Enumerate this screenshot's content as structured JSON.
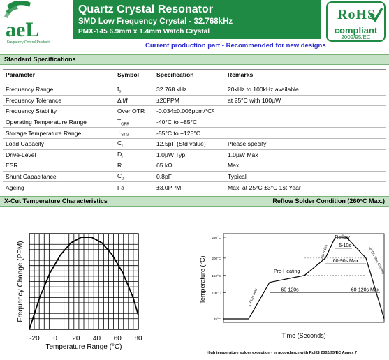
{
  "header": {
    "logo_text": "aeL",
    "logo_tagline": "Frequency Control Products",
    "title": "Quartz Crystal Resonator",
    "subtitle": "SMD Low Frequency Crystal - 32.768kHz",
    "model": "PMX-145 6.9mm x 1.4mm  Watch Crystal",
    "production_note": "Current production part - Recommended for new designs"
  },
  "rohs": {
    "mark": "RoHS",
    "compliant": "compliant",
    "directive": "2002/95/EC"
  },
  "colors": {
    "brand_green": "#1f8a43",
    "section_green": "#c6e2c6",
    "note_blue": "#2a2ad0"
  },
  "specs": {
    "section_title": "Standard Specifications",
    "headers": [
      "Parameter",
      "Symbol",
      "Specification",
      "Remarks"
    ],
    "rows": [
      {
        "parameter": "Frequency Range",
        "symbol": "f",
        "symbol_sub": "o",
        "spec": "32.768 kHz",
        "remarks": "20kHz to 100kHz available"
      },
      {
        "parameter": "Frequency Tolerance",
        "symbol": "Δ f/f",
        "symbol_sub": "",
        "spec": "±20PPM",
        "remarks": "at 25°C with 100µW"
      },
      {
        "parameter": "Frequency Stability",
        "symbol": "Over OTR",
        "symbol_sub": "",
        "spec": "-0.034±0.006ppm/°C²",
        "remarks": ""
      },
      {
        "parameter": "Operating Temperature Range",
        "symbol": "T",
        "symbol_sub": "OPR",
        "spec": "-40°C to +85°C",
        "remarks": ""
      },
      {
        "parameter": "Storage Temperature Range",
        "symbol": "T",
        "symbol_sub": "STG",
        "spec": "-55°C to +125°C",
        "remarks": ""
      },
      {
        "parameter": "Load Capacity",
        "symbol": "C",
        "symbol_sub": "L",
        "spec": "12.5pF (Std value)",
        "remarks": "Please specify"
      },
      {
        "parameter": "Drive-Level",
        "symbol": "D",
        "symbol_sub": "L",
        "spec": "1.0µW Typ.",
        "remarks": "1.0µW Max"
      },
      {
        "parameter": "ESR",
        "symbol": "R",
        "symbol_sub": "",
        "spec": "65 kΩ",
        "remarks": "Max."
      },
      {
        "parameter": "Shunt Capacitance",
        "symbol": "C",
        "symbol_sub": "0",
        "spec": "0.8pF",
        "remarks": "Typical"
      },
      {
        "parameter": "Ageing",
        "symbol": "Fa",
        "symbol_sub": "",
        "spec": "±3.0PPM",
        "remarks": "Max. at 25°C ±3°C 1st Year"
      }
    ]
  },
  "charts_section": {
    "left_title": "X-Cut Temperature Characteristics",
    "right_title": "Reflow Solder Condition (260°C Max.)"
  },
  "chart_data": [
    {
      "type": "line",
      "title": "",
      "xlabel": "Temperature Range (°C)",
      "ylabel": "Frequency Change (PPM)",
      "x_ticks": [
        -20,
        0,
        20,
        40,
        60,
        80
      ],
      "xlim": [
        -25,
        80
      ],
      "grid": true,
      "series": [
        {
          "x": [
            -25,
            -15,
            -5,
            5,
            15,
            25,
            35,
            45,
            55,
            65,
            75,
            80
          ],
          "y": [
            -1.0,
            -0.55,
            -0.2,
            0.05,
            0.22,
            0.3,
            0.3,
            0.22,
            0.05,
            -0.2,
            -0.55,
            -0.8
          ]
        }
      ]
    },
    {
      "type": "line",
      "title": "",
      "xlabel": "Time (Seconds)",
      "ylabel": "Temperature (°C)",
      "y_ticks": [
        "25°C",
        "100°C",
        "150°C",
        "200°C",
        "260°C"
      ],
      "labels": {
        "reflow": "Reflow",
        "reflow_time": "5-10s",
        "reflow_window": "60-90s Max",
        "preheat": "Pre-Heating",
        "preheat_time": "60-120s",
        "cooldown_time": "60-120s Max",
        "ramp1": "≤ 3°C/s Max",
        "ramp2": "2 to 5°C/s",
        "cooling": "-6°C/s Max Cooling"
      },
      "series": [
        {
          "x": [
            0,
            18,
            33,
            58,
            73,
            80,
            88,
            102,
            115
          ],
          "y": [
            25,
            25,
            130,
            150,
            200,
            260,
            260,
            200,
            25
          ]
        }
      ]
    }
  ],
  "footnote": "High temperature solder exception - In accordance with RoHS 2002/95/EC Annex 7"
}
